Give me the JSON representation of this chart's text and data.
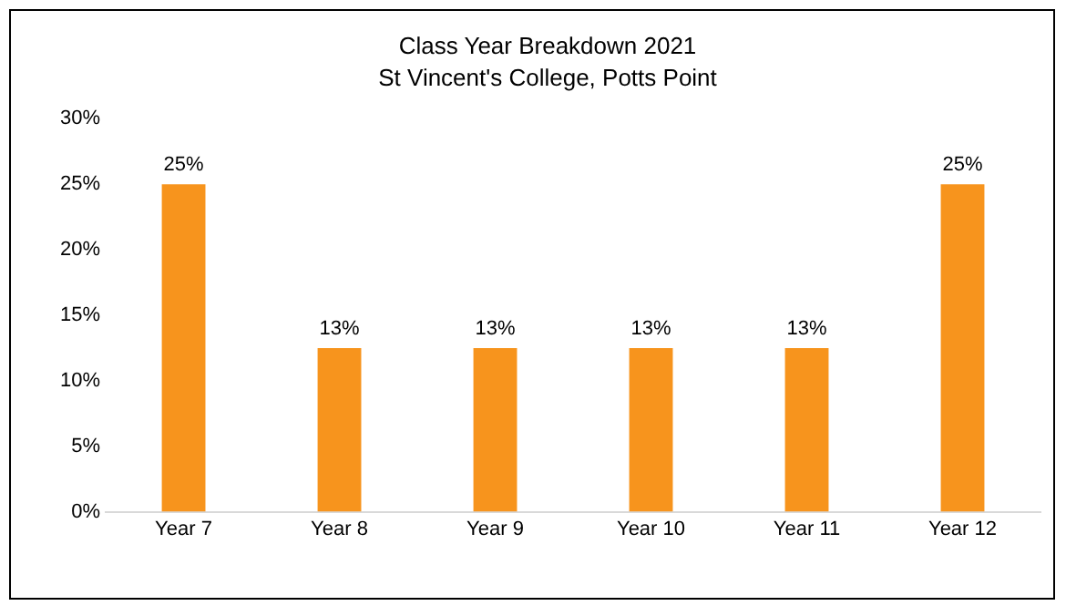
{
  "chart_data": {
    "type": "bar",
    "title": "Class Year Breakdown 2021",
    "subtitle": "St Vincent's College, Potts Point",
    "categories": [
      "Year 7",
      "Year 8",
      "Year 9",
      "Year 10",
      "Year 11",
      "Year 12"
    ],
    "values": [
      25,
      12.5,
      12.5,
      12.5,
      12.5,
      25
    ],
    "value_labels": [
      "25%",
      "13%",
      "13%",
      "13%",
      "13%",
      "25%"
    ],
    "color": "#f7941d",
    "ylim": [
      0,
      30
    ],
    "yticks": [
      {
        "value": 0,
        "label": "0%"
      },
      {
        "value": 5,
        "label": "5%"
      },
      {
        "value": 10,
        "label": "10%"
      },
      {
        "value": 15,
        "label": "15%"
      },
      {
        "value": 20,
        "label": "20%"
      },
      {
        "value": 25,
        "label": "25%"
      },
      {
        "value": 30,
        "label": "30%"
      }
    ],
    "grid": false,
    "legend": false
  }
}
